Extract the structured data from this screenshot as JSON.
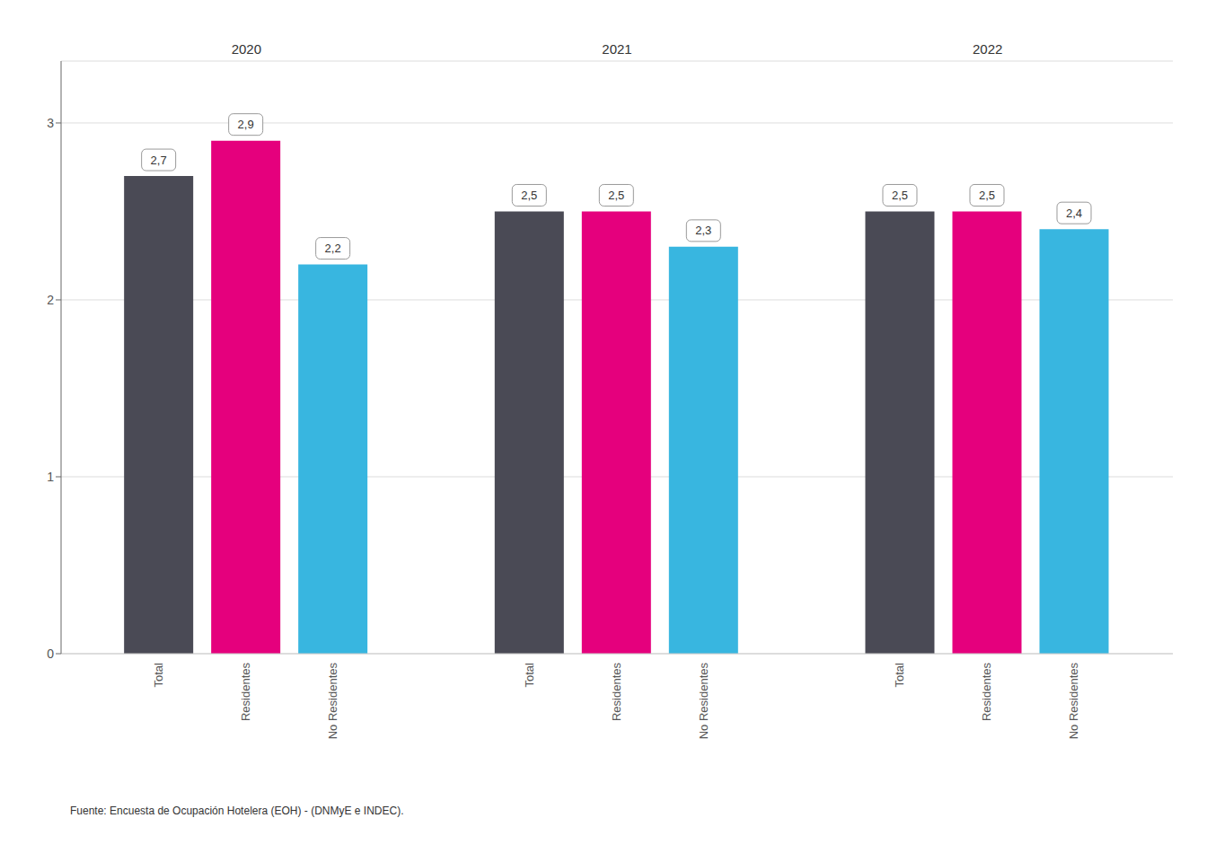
{
  "chart_data": {
    "type": "bar",
    "categories": [
      "2020",
      "2021",
      "2022"
    ],
    "series": [
      {
        "name": "Total",
        "color": "#4a4a55",
        "values": [
          2.7,
          2.5,
          2.5
        ],
        "value_labels": [
          "2,7",
          "2,5",
          "2,5"
        ]
      },
      {
        "name": "Residentes",
        "color": "#e5007d",
        "values": [
          2.9,
          2.5,
          2.5
        ],
        "value_labels": [
          "2,9",
          "2,5",
          "2,5"
        ]
      },
      {
        "name": "No Residentes",
        "color": "#38b6e0",
        "values": [
          2.2,
          2.3,
          2.4
        ],
        "value_labels": [
          "2,2",
          "2,3",
          "2,4"
        ]
      }
    ],
    "ylim": [
      0,
      3.35
    ],
    "yticks": [
      0,
      1,
      2,
      3
    ],
    "grid": true,
    "data_labels": true,
    "annotations": [
      "Fuente: Encuesta de Ocupación Hotelera (EOH) - (DNMyE e INDEC)."
    ]
  }
}
